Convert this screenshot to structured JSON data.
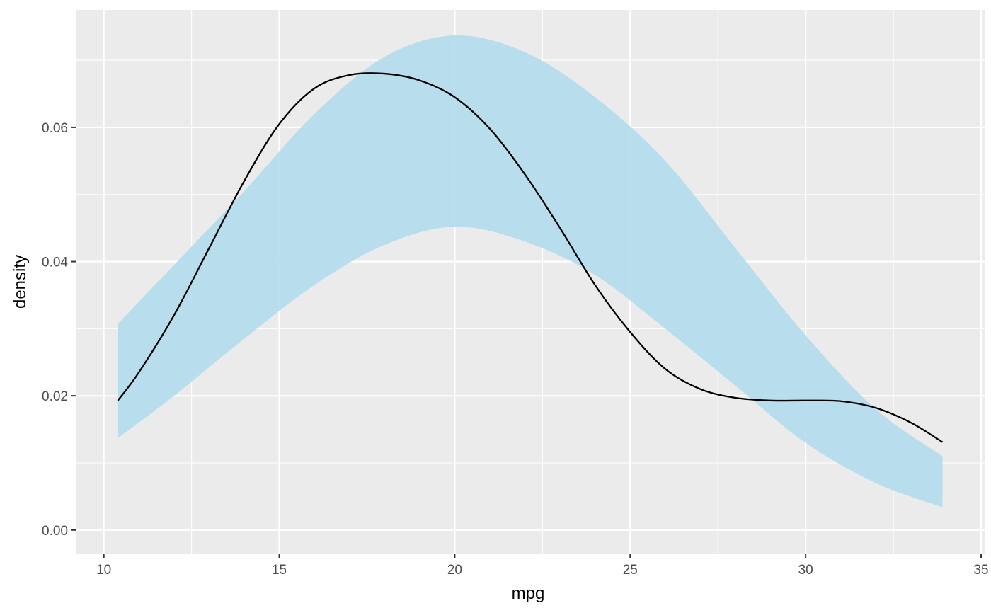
{
  "chart_data": {
    "type": "area",
    "title": "",
    "xlabel": "mpg",
    "ylabel": "density",
    "xlim": [
      9.2,
      35.1
    ],
    "ylim": [
      -0.0035,
      0.0775
    ],
    "x_ticks": [
      10,
      15,
      20,
      25,
      30,
      35
    ],
    "x_tick_labels": [
      "10",
      "15",
      "20",
      "25",
      "30",
      "35"
    ],
    "y_ticks": [
      0.0,
      0.02,
      0.04,
      0.06
    ],
    "y_tick_labels": [
      "0.00",
      "0.02",
      "0.04",
      "0.06"
    ],
    "grid": true,
    "legend": "none",
    "colors": {
      "panel_background": "#ebebeb",
      "grid_line": "#ffffff",
      "band_fill": "#b3dcec",
      "density_line": "#000000"
    },
    "series": [
      {
        "kind": "band",
        "x": [
          10.4,
          12,
          14,
          16,
          18,
          20,
          22,
          24,
          26,
          28,
          30,
          32,
          33.9
        ],
        "lower": [
          0.0137,
          0.02,
          0.0285,
          0.0365,
          0.0425,
          0.0452,
          0.043,
          0.038,
          0.03,
          0.0215,
          0.013,
          0.007,
          0.0034
        ],
        "upper": [
          0.0307,
          0.0395,
          0.0505,
          0.062,
          0.0705,
          0.0737,
          0.0712,
          0.0645,
          0.055,
          0.042,
          0.029,
          0.018,
          0.011
        ]
      },
      {
        "kind": "line",
        "x": [
          10.4,
          11,
          12,
          13,
          14,
          15,
          16,
          17,
          18,
          19,
          20,
          21,
          22,
          23,
          24,
          25,
          26,
          27,
          28,
          29,
          30,
          31,
          32,
          33,
          33.9
        ],
        "y": [
          0.0193,
          0.0235,
          0.032,
          0.042,
          0.052,
          0.0605,
          0.0658,
          0.0678,
          0.068,
          0.067,
          0.0645,
          0.0598,
          0.053,
          0.045,
          0.0365,
          0.0295,
          0.024,
          0.021,
          0.0197,
          0.0193,
          0.0193,
          0.0192,
          0.0182,
          0.016,
          0.0131
        ]
      }
    ]
  }
}
